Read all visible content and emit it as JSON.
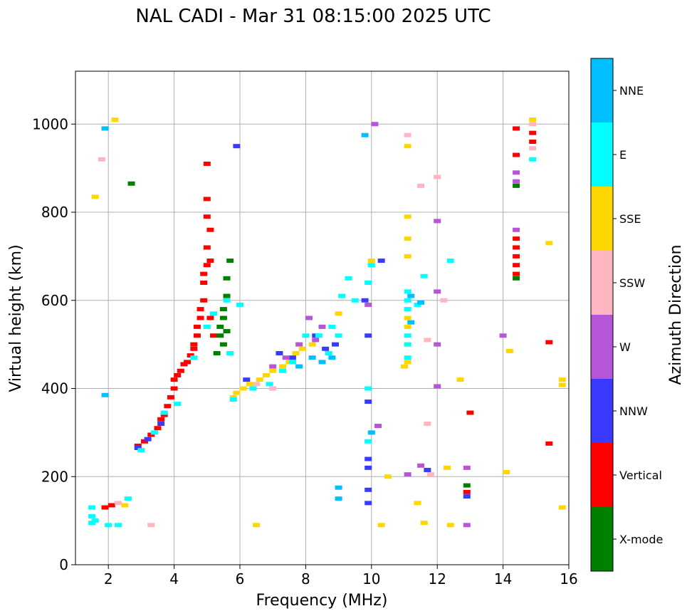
{
  "chart_data": {
    "type": "scatter",
    "title": "NAL CADI - Mar 31 08:15:00 2025 UTC",
    "xlabel": "Frequency (MHz)",
    "ylabel": "Virtual height (km)",
    "xlim": [
      1,
      16
    ],
    "ylim": [
      0,
      1120
    ],
    "grid": true,
    "xticks": [
      2,
      4,
      6,
      8,
      10,
      12,
      14,
      16
    ],
    "yticks": [
      0,
      200,
      400,
      600,
      800,
      1000
    ],
    "colorbar": {
      "label": "Azimuth Direction",
      "categories": [
        {
          "name": "X-mode",
          "color": "#008000"
        },
        {
          "name": "Vertical",
          "color": "#ff0000"
        },
        {
          "name": "NNW",
          "color": "#3a3aff"
        },
        {
          "name": "W",
          "color": "#b655d8"
        },
        {
          "name": "SSW",
          "color": "#ffb6c1"
        },
        {
          "name": "SSE",
          "color": "#ffd700"
        },
        {
          "name": "E",
          "color": "#00ffff"
        },
        {
          "name": "NNE",
          "color": "#00bfff"
        }
      ]
    },
    "series": [
      {
        "name": "Vertical",
        "points": [
          [
            1.9,
            130
          ],
          [
            2.1,
            135
          ],
          [
            2.9,
            270
          ],
          [
            3.1,
            280
          ],
          [
            3.3,
            295
          ],
          [
            3.5,
            310
          ],
          [
            3.6,
            330
          ],
          [
            3.7,
            340
          ],
          [
            3.8,
            360
          ],
          [
            3.9,
            380
          ],
          [
            4.0,
            400
          ],
          [
            4.0,
            420
          ],
          [
            4.1,
            430
          ],
          [
            4.2,
            440
          ],
          [
            4.3,
            455
          ],
          [
            4.4,
            460
          ],
          [
            4.5,
            475
          ],
          [
            4.6,
            490
          ],
          [
            4.6,
            500
          ],
          [
            4.7,
            520
          ],
          [
            4.7,
            540
          ],
          [
            4.8,
            560
          ],
          [
            4.8,
            580
          ],
          [
            4.9,
            600
          ],
          [
            4.9,
            640
          ],
          [
            5.0,
            680
          ],
          [
            5.0,
            720
          ],
          [
            5.1,
            760
          ],
          [
            5.0,
            790
          ],
          [
            5.0,
            830
          ],
          [
            5.0,
            910
          ],
          [
            5.1,
            560
          ],
          [
            5.2,
            520
          ],
          [
            4.9,
            660
          ],
          [
            5.1,
            690
          ],
          [
            14.4,
            990
          ],
          [
            14.4,
            930
          ],
          [
            14.4,
            700
          ],
          [
            14.4,
            720
          ],
          [
            14.4,
            740
          ],
          [
            14.4,
            680
          ],
          [
            14.4,
            660
          ],
          [
            14.9,
            960
          ],
          [
            14.9,
            980
          ],
          [
            15.4,
            505
          ],
          [
            15.4,
            275
          ],
          [
            13.0,
            345
          ],
          [
            12.9,
            165
          ]
        ]
      },
      {
        "name": "X-mode",
        "points": [
          [
            2.7,
            865
          ],
          [
            5.3,
            480
          ],
          [
            5.4,
            520
          ],
          [
            5.4,
            540
          ],
          [
            5.5,
            560
          ],
          [
            5.5,
            580
          ],
          [
            5.6,
            610
          ],
          [
            5.6,
            650
          ],
          [
            5.7,
            690
          ],
          [
            5.5,
            500
          ],
          [
            5.6,
            530
          ],
          [
            14.4,
            860
          ],
          [
            14.4,
            650
          ],
          [
            12.9,
            180
          ]
        ]
      },
      {
        "name": "NNW",
        "points": [
          [
            2.9,
            265
          ],
          [
            3.2,
            285
          ],
          [
            3.6,
            320
          ],
          [
            5.9,
            950
          ],
          [
            6.2,
            420
          ],
          [
            7.2,
            480
          ],
          [
            7.6,
            470
          ],
          [
            8.3,
            520
          ],
          [
            8.6,
            490
          ],
          [
            8.9,
            500
          ],
          [
            9.8,
            600
          ],
          [
            9.9,
            520
          ],
          [
            9.9,
            370
          ],
          [
            9.9,
            240
          ],
          [
            9.9,
            220
          ],
          [
            9.9,
            170
          ],
          [
            9.9,
            140
          ],
          [
            10.3,
            690
          ],
          [
            11.7,
            215
          ],
          [
            12.9,
            155
          ]
        ]
      },
      {
        "name": "W",
        "points": [
          [
            7.0,
            450
          ],
          [
            7.4,
            470
          ],
          [
            7.8,
            500
          ],
          [
            8.1,
            560
          ],
          [
            8.3,
            510
          ],
          [
            8.5,
            540
          ],
          [
            9.9,
            590
          ],
          [
            10.1,
            1000
          ],
          [
            10.2,
            315
          ],
          [
            11.1,
            205
          ],
          [
            11.5,
            225
          ],
          [
            12.0,
            500
          ],
          [
            12.0,
            620
          ],
          [
            12.0,
            780
          ],
          [
            12.0,
            405
          ],
          [
            12.9,
            220
          ],
          [
            12.9,
            90
          ],
          [
            14.0,
            520
          ],
          [
            14.4,
            870
          ],
          [
            14.4,
            890
          ],
          [
            14.4,
            760
          ]
        ]
      },
      {
        "name": "SSW",
        "points": [
          [
            1.8,
            920
          ],
          [
            2.3,
            140
          ],
          [
            3.3,
            90
          ],
          [
            6.5,
            410
          ],
          [
            7.0,
            400
          ],
          [
            11.1,
            975
          ],
          [
            11.5,
            860
          ],
          [
            11.7,
            320
          ],
          [
            11.7,
            510
          ],
          [
            11.8,
            205
          ],
          [
            12.0,
            880
          ],
          [
            12.2,
            600
          ],
          [
            14.9,
            1000
          ],
          [
            14.9,
            945
          ]
        ]
      },
      {
        "name": "SSE",
        "points": [
          [
            1.6,
            835
          ],
          [
            2.2,
            1010
          ],
          [
            2.5,
            135
          ],
          [
            5.8,
            380
          ],
          [
            5.9,
            390
          ],
          [
            6.1,
            400
          ],
          [
            6.3,
            410
          ],
          [
            6.6,
            420
          ],
          [
            6.8,
            430
          ],
          [
            7.0,
            440
          ],
          [
            7.3,
            450
          ],
          [
            7.5,
            460
          ],
          [
            7.7,
            480
          ],
          [
            7.9,
            490
          ],
          [
            8.2,
            500
          ],
          [
            9.0,
            570
          ],
          [
            10.0,
            690
          ],
          [
            10.3,
            90
          ],
          [
            10.5,
            200
          ],
          [
            11.0,
            450
          ],
          [
            11.1,
            460
          ],
          [
            11.1,
            500
          ],
          [
            11.1,
            540
          ],
          [
            11.1,
            560
          ],
          [
            11.1,
            700
          ],
          [
            11.1,
            740
          ],
          [
            11.1,
            790
          ],
          [
            11.1,
            950
          ],
          [
            11.4,
            140
          ],
          [
            11.6,
            95
          ],
          [
            12.3,
            220
          ],
          [
            12.4,
            90
          ],
          [
            12.7,
            420
          ],
          [
            14.1,
            210
          ],
          [
            14.2,
            485
          ],
          [
            14.9,
            1010
          ],
          [
            15.4,
            730
          ],
          [
            15.8,
            420
          ],
          [
            15.8,
            408
          ],
          [
            15.8,
            130
          ],
          [
            6.5,
            90
          ]
        ]
      },
      {
        "name": "E",
        "points": [
          [
            1.5,
            95
          ],
          [
            1.5,
            110
          ],
          [
            1.5,
            130
          ],
          [
            1.6,
            100
          ],
          [
            2.0,
            90
          ],
          [
            2.3,
            90
          ],
          [
            2.6,
            150
          ],
          [
            3.0,
            260
          ],
          [
            3.4,
            300
          ],
          [
            3.7,
            345
          ],
          [
            4.1,
            365
          ],
          [
            4.6,
            470
          ],
          [
            5.0,
            540
          ],
          [
            5.2,
            570
          ],
          [
            5.6,
            600
          ],
          [
            5.7,
            480
          ],
          [
            6.0,
            590
          ],
          [
            5.8,
            375
          ],
          [
            6.4,
            400
          ],
          [
            6.9,
            410
          ],
          [
            7.3,
            440
          ],
          [
            7.6,
            460
          ],
          [
            8.0,
            520
          ],
          [
            8.4,
            520
          ],
          [
            8.7,
            480
          ],
          [
            8.8,
            540
          ],
          [
            9.1,
            610
          ],
          [
            9.0,
            520
          ],
          [
            9.3,
            650
          ],
          [
            9.5,
            600
          ],
          [
            9.9,
            280
          ],
          [
            9.9,
            400
          ],
          [
            9.9,
            640
          ],
          [
            10.0,
            680
          ],
          [
            11.1,
            470
          ],
          [
            11.1,
            500
          ],
          [
            11.1,
            520
          ],
          [
            11.1,
            580
          ],
          [
            11.1,
            600
          ],
          [
            11.1,
            620
          ],
          [
            11.4,
            590
          ],
          [
            11.6,
            655
          ],
          [
            12.4,
            690
          ],
          [
            14.9,
            920
          ]
        ]
      },
      {
        "name": "NNE",
        "points": [
          [
            1.9,
            990
          ],
          [
            1.9,
            385
          ],
          [
            7.8,
            450
          ],
          [
            8.2,
            470
          ],
          [
            8.5,
            460
          ],
          [
            8.8,
            470
          ],
          [
            9.0,
            175
          ],
          [
            9.0,
            150
          ],
          [
            9.8,
            975
          ],
          [
            10.0,
            300
          ],
          [
            11.2,
            610
          ],
          [
            11.2,
            550
          ],
          [
            11.5,
            595
          ]
        ]
      }
    ]
  }
}
